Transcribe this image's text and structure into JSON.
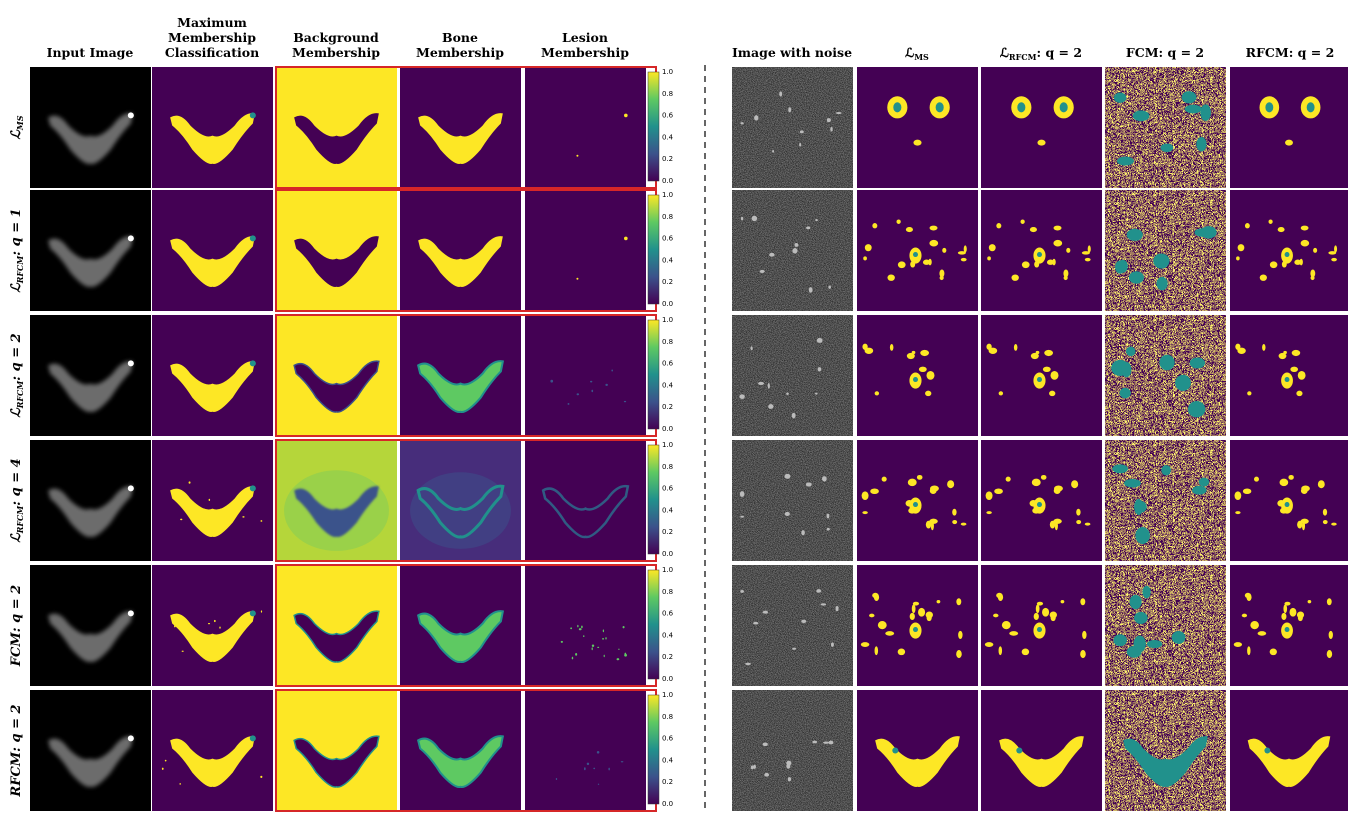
{
  "left_headers": [
    {
      "lines": [
        "Input Image"
      ]
    },
    {
      "lines": [
        "Maximum",
        "Membership",
        "Classification"
      ]
    },
    {
      "lines": [
        "Background",
        "Membership"
      ]
    },
    {
      "lines": [
        "Bone",
        "Membership"
      ]
    },
    {
      "lines": [
        "Lesion",
        "Membership"
      ]
    }
  ],
  "right_headers": [
    {
      "text": "Image with noise"
    },
    {
      "symbol": "ℒ",
      "sub": "MS"
    },
    {
      "symbol": "ℒ",
      "sub": "RFCM",
      "rest": ": q = 2"
    },
    {
      "text": "FCM: q = 2"
    },
    {
      "text": "RFCM: q = 2"
    }
  ],
  "row_labels": [
    {
      "symbol": "ℒ",
      "sub": "MS"
    },
    {
      "symbol": "ℒ",
      "sub": "RFCM",
      "rest": ": q = 1"
    },
    {
      "symbol": "ℒ",
      "sub": "RFCM",
      "rest": ": q = 2"
    },
    {
      "symbol": "ℒ",
      "sub": "RFCM",
      "rest": ": q = 4"
    },
    {
      "text": "FCM: q = 2"
    },
    {
      "text": "RFCM: q = 2"
    }
  ],
  "colorbar_ticks": [
    "0.0",
    "0.2",
    "0.4",
    "0.6",
    "0.8",
    "1.0"
  ]
}
